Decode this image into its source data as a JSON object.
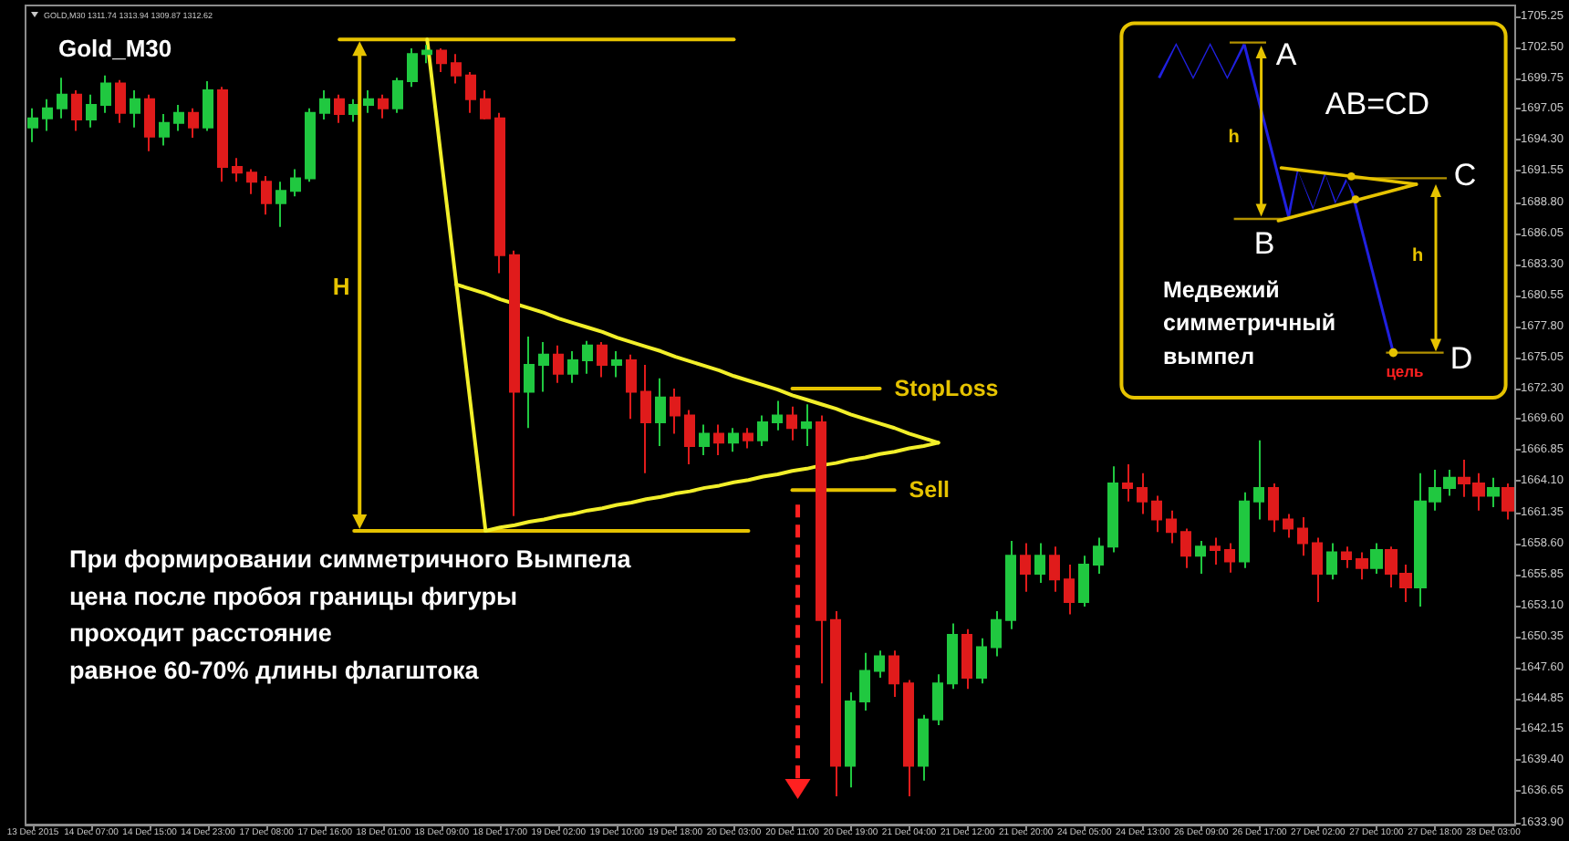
{
  "chart_data": {
    "type": "candlestick",
    "title": "Gold_M30",
    "marker": "none",
    "annotations": [
      "GOLD,M30 1311.74 1313.94 1309.87 1312.62",
      "H",
      "При формировании симметричного Вымпела\nцена после пробоя границы фигуры\nпроходит расстояние\nравное 60-70% длины флагштока",
      "A",
      "AB=CD",
      "h",
      "B",
      "C",
      "h",
      "Медвежий\nсимметричный\nвымпел",
      "D",
      "цель"
    ],
    "categories": [
      "13 Dec 2015",
      null,
      null,
      null,
      "14 Dec 07:00",
      null,
      null,
      null,
      "14 Dec 15:00",
      null,
      null,
      null,
      "14 Dec 23:00",
      null,
      null,
      null,
      "17 Dec 08:00",
      null,
      null,
      null,
      "17 Dec 16:00",
      null,
      null,
      null,
      "18 Dec 01:00",
      null,
      null,
      null,
      "18 Dec 09:00",
      null,
      null,
      null,
      "18 Dec 17:00",
      null,
      null,
      null,
      "19 Dec 02:00",
      null,
      null,
      null,
      "19 Dec 10:00",
      null,
      null,
      null,
      "19 Dec 18:00",
      null,
      null,
      null,
      "20 Dec 03:00",
      null,
      null,
      null,
      "20 Dec 11:00",
      null,
      null,
      null,
      "20 Dec 19:00",
      null,
      null,
      null,
      "21 Dec 04:00",
      null,
      null,
      null,
      "21 Dec 12:00",
      null,
      null,
      null,
      "21 Dec 20:00",
      null,
      null,
      null,
      "24 Dec 05:00",
      null,
      null,
      null,
      "24 Dec 13:00",
      null,
      null,
      null,
      "26 Dec 09:00",
      null,
      null,
      null,
      "26 Dec 17:00",
      null,
      null,
      null,
      "27 Dec 02:00",
      null,
      null,
      null,
      "27 Dec 10:00",
      null,
      null,
      null,
      "27 Dec 18:00",
      null,
      null,
      null,
      "28 Dec 03:00",
      null
    ],
    "ylim": [
      1633.7,
      1706.2
    ],
    "yticks": [
      {
        "value": 1633.9,
        "label": "1633.90"
      },
      1636.65,
      {
        "value": 1639.4,
        "label": "1639.40"
      },
      1642.15,
      1644.85,
      {
        "value": 1647.6,
        "label": "1647.60"
      },
      1650.35,
      {
        "value": 1653.1,
        "label": "1653.10"
      },
      1655.85,
      {
        "value": 1658.6,
        "label": "1658.60"
      },
      1661.35,
      {
        "value": 1664.1,
        "label": "1664.10"
      },
      1666.85,
      {
        "value": 1669.6,
        "label": "1669.60"
      },
      {
        "value": 1672.3,
        "label": "1672.30"
      },
      1675.05,
      {
        "value": 1677.8,
        "label": "1677.80"
      },
      1680.55,
      {
        "value": 1683.3,
        "label": "1683.30"
      },
      1686.05,
      {
        "value": 1688.8,
        "label": "1688.80"
      },
      1691.55,
      {
        "value": 1694.3,
        "label": "1694.30"
      },
      1697.05,
      1699.75,
      {
        "value": 1702.5,
        "label": "1702.50"
      },
      1705.25
    ],
    "ohlc": [
      [
        1695.4,
        1697.1,
        1694.1,
        1696.2
      ],
      [
        1696.2,
        1697.9,
        1695.1,
        1697.1
      ],
      [
        1697.1,
        1699.8,
        1696.2,
        1698.3
      ],
      [
        1698.3,
        1698.7,
        1695.1,
        1696.1
      ],
      [
        1696.1,
        1698.3,
        1695.4,
        1697.4
      ],
      [
        1697.4,
        1700.0,
        1696.7,
        1699.3
      ],
      [
        1699.3,
        1699.6,
        1695.8,
        1696.7
      ],
      [
        1696.7,
        1698.7,
        1695.4,
        1697.9
      ],
      [
        1697.9,
        1698.3,
        1693.3,
        1694.6
      ],
      [
        1694.6,
        1696.6,
        1693.8,
        1695.8
      ],
      [
        1695.8,
        1697.4,
        1695.1,
        1696.7
      ],
      [
        1696.7,
        1697.1,
        1694.5,
        1695.4
      ],
      [
        1695.4,
        1699.5,
        1695.1,
        1698.7
      ],
      [
        1698.7,
        1699.0,
        1690.6,
        1691.9
      ],
      [
        1691.9,
        1692.7,
        1690.6,
        1691.4
      ],
      [
        1691.4,
        1691.7,
        1689.5,
        1690.6
      ],
      [
        1690.6,
        1691.1,
        1687.7,
        1688.7
      ],
      [
        1688.7,
        1690.6,
        1686.6,
        1689.8
      ],
      [
        1689.8,
        1691.7,
        1689.3,
        1690.9
      ],
      [
        1690.9,
        1697.1,
        1690.6,
        1696.7
      ],
      [
        1696.7,
        1698.7,
        1696.1,
        1697.9
      ],
      [
        1697.9,
        1698.3,
        1695.8,
        1696.6
      ],
      [
        1696.6,
        1697.9,
        1695.9,
        1697.4
      ],
      [
        1697.4,
        1698.7,
        1696.7,
        1697.9
      ],
      [
        1697.9,
        1698.3,
        1696.2,
        1697.1
      ],
      [
        1697.1,
        1699.8,
        1696.7,
        1699.5
      ],
      [
        1699.5,
        1702.4,
        1699.0,
        1701.9
      ],
      [
        1701.9,
        1702.7,
        1701.1,
        1702.2
      ],
      [
        1702.2,
        1702.4,
        1700.3,
        1701.1
      ],
      [
        1701.1,
        1701.9,
        1699.3,
        1700.0
      ],
      [
        1700.0,
        1700.3,
        1696.7,
        1697.9
      ],
      [
        1697.9,
        1698.7,
        1696.1,
        1696.2
      ],
      [
        1696.2,
        1696.7,
        1682.5,
        1684.1
      ],
      [
        1684.1,
        1684.5,
        1661.0,
        1672.0
      ],
      [
        1672.0,
        1676.9,
        1668.8,
        1674.4
      ],
      [
        1674.4,
        1676.4,
        1672.0,
        1675.3
      ],
      [
        1675.3,
        1676.1,
        1672.8,
        1673.6
      ],
      [
        1673.6,
        1675.6,
        1672.8,
        1674.8
      ],
      [
        1674.8,
        1676.5,
        1673.6,
        1676.1
      ],
      [
        1676.1,
        1676.4,
        1673.3,
        1674.4
      ],
      [
        1674.4,
        1675.6,
        1673.3,
        1674.8
      ],
      [
        1674.8,
        1675.3,
        1669.6,
        1672.0
      ],
      [
        1672.0,
        1674.4,
        1664.8,
        1669.3
      ],
      [
        1669.3,
        1673.2,
        1667.2,
        1671.5
      ],
      [
        1671.5,
        1672.3,
        1668.3,
        1669.9
      ],
      [
        1669.9,
        1670.4,
        1665.6,
        1667.2
      ],
      [
        1667.2,
        1669.1,
        1666.4,
        1668.3
      ],
      [
        1668.3,
        1669.1,
        1666.4,
        1667.5
      ],
      [
        1667.5,
        1668.8,
        1666.7,
        1668.3
      ],
      [
        1668.3,
        1668.8,
        1667.0,
        1667.7
      ],
      [
        1667.7,
        1669.9,
        1667.2,
        1669.3
      ],
      [
        1669.3,
        1671.2,
        1668.6,
        1669.9
      ],
      [
        1669.9,
        1670.7,
        1667.7,
        1668.8
      ],
      [
        1668.8,
        1670.9,
        1667.2,
        1669.3
      ],
      [
        1669.3,
        1669.9,
        1646.2,
        1651.8
      ],
      [
        1651.8,
        1652.6,
        1636.2,
        1638.9
      ],
      [
        1638.9,
        1645.4,
        1637.0,
        1644.6
      ],
      [
        1644.6,
        1648.9,
        1643.8,
        1647.3
      ],
      [
        1647.3,
        1649.1,
        1646.7,
        1648.6
      ],
      [
        1648.6,
        1649.1,
        1645.0,
        1646.2
      ],
      [
        1646.2,
        1646.5,
        1636.2,
        1638.9
      ],
      [
        1638.9,
        1643.4,
        1637.6,
        1643.0
      ],
      [
        1643.0,
        1647.0,
        1642.5,
        1646.2
      ],
      [
        1646.2,
        1651.5,
        1645.7,
        1650.5
      ],
      [
        1650.5,
        1651.0,
        1645.7,
        1646.7
      ],
      [
        1646.7,
        1650.2,
        1646.2,
        1649.4
      ],
      [
        1649.4,
        1652.6,
        1648.6,
        1651.8
      ],
      [
        1651.8,
        1658.8,
        1651.0,
        1657.5
      ],
      [
        1657.5,
        1658.6,
        1654.3,
        1655.9
      ],
      [
        1655.9,
        1658.6,
        1655.1,
        1657.5
      ],
      [
        1657.5,
        1658.3,
        1654.3,
        1655.4
      ],
      [
        1655.4,
        1656.7,
        1652.3,
        1653.4
      ],
      [
        1653.4,
        1657.5,
        1653.0,
        1656.7
      ],
      [
        1656.7,
        1659.1,
        1655.9,
        1658.3
      ],
      [
        1658.3,
        1665.4,
        1657.8,
        1663.9
      ],
      [
        1663.9,
        1665.6,
        1662.3,
        1663.5
      ],
      [
        1663.5,
        1664.8,
        1661.2,
        1662.3
      ],
      [
        1662.3,
        1662.8,
        1659.6,
        1660.7
      ],
      [
        1660.7,
        1661.5,
        1658.6,
        1659.6
      ],
      [
        1659.6,
        1659.9,
        1656.4,
        1657.5
      ],
      [
        1657.5,
        1658.8,
        1655.9,
        1658.3
      ],
      [
        1658.3,
        1659.1,
        1656.7,
        1658.0
      ],
      [
        1658.0,
        1658.6,
        1656.0,
        1657.0
      ],
      [
        1657.0,
        1663.1,
        1656.4,
        1662.3
      ],
      [
        1662.3,
        1667.7,
        1660.7,
        1663.5
      ],
      [
        1663.5,
        1663.9,
        1659.6,
        1660.7
      ],
      [
        1660.7,
        1661.2,
        1659.1,
        1659.9
      ],
      [
        1659.9,
        1660.9,
        1657.5,
        1658.6
      ],
      [
        1658.6,
        1659.1,
        1653.4,
        1655.9
      ],
      [
        1655.9,
        1658.6,
        1655.4,
        1657.8
      ],
      [
        1657.8,
        1658.3,
        1656.4,
        1657.2
      ],
      [
        1657.2,
        1657.8,
        1655.4,
        1656.4
      ],
      [
        1656.4,
        1658.6,
        1655.9,
        1658.0
      ],
      [
        1658.0,
        1658.3,
        1654.7,
        1655.9
      ],
      [
        1655.9,
        1656.7,
        1653.4,
        1654.7
      ],
      [
        1654.7,
        1664.8,
        1653.0,
        1662.3
      ],
      [
        1662.3,
        1665.1,
        1661.5,
        1663.5
      ],
      [
        1663.5,
        1665.1,
        1662.8,
        1664.4
      ],
      [
        1664.4,
        1666.0,
        1662.7,
        1663.9
      ],
      [
        1663.9,
        1664.8,
        1661.5,
        1662.8
      ],
      [
        1662.8,
        1664.4,
        1661.8,
        1663.5
      ],
      [
        1663.5,
        1663.9,
        1660.7,
        1661.5
      ]
    ],
    "colors": [
      "#20c840",
      "#20c840",
      "#20c840",
      "#e01b1b",
      "#20c840",
      "#20c840",
      "#e01b1b",
      "#20c840",
      "#e01b1b",
      "#20c840",
      "#20c840",
      "#e01b1b",
      "#20c840",
      "#e01b1b",
      "#e01b1b",
      "#e01b1b",
      "#e01b1b",
      "#20c840",
      "#20c840",
      "#20c840",
      "#20c840",
      "#e01b1b",
      "#20c840",
      "#20c840",
      "#e01b1b",
      "#20c840",
      "#20c840",
      "#20c840",
      "#e01b1b",
      "#e01b1b",
      "#e01b1b",
      "#e01b1b",
      "#e01b1b",
      "#e01b1b",
      "#20c840",
      "#20c840",
      "#e01b1b",
      "#20c840",
      "#20c840",
      "#e01b1b",
      "#20c840",
      "#e01b1b",
      "#e01b1b",
      "#20c840",
      "#e01b1b",
      "#e01b1b",
      "#20c840",
      "#e01b1b",
      "#20c840",
      "#e01b1b",
      "#20c840",
      "#20c840",
      "#e01b1b",
      "#20c840",
      "#e01b1b",
      "#e01b1b",
      "#20c840",
      "#20c840",
      "#20c840",
      "#e01b1b",
      "#e01b1b",
      "#20c840",
      "#20c840",
      "#20c840",
      "#e01b1b",
      "#20c840",
      "#20c840",
      "#20c840",
      "#e01b1b",
      "#20c840",
      "#e01b1b",
      "#e01b1b",
      "#20c840",
      "#20c840",
      "#20c840",
      "#e01b1b",
      "#e01b1b",
      "#e01b1b",
      "#e01b1b",
      "#e01b1b",
      "#20c840",
      "#e01b1b",
      "#e01b1b",
      "#20c840",
      "#20c840",
      "#e01b1b",
      "#e01b1b",
      "#e01b1b",
      "#e01b1b",
      "#20c840",
      "#e01b1b",
      "#e01b1b",
      "#20c840",
      "#e01b1b",
      "#e01b1b",
      "#20c840",
      "#20c840",
      "#20c840",
      "#e01b1b",
      "#e01b1b",
      "#20c840",
      "#e01b1b"
    ],
    "series": [
      {
        "type": "line",
        "color": "#e6c300",
        "values": [
          null,
          null,
          null,
          null,
          null,
          null,
          null,
          null,
          null,
          null,
          null,
          null,
          null,
          null,
          null,
          null,
          null,
          null,
          null,
          null,
          null,
          1703.2,
          1703.2,
          1703.2,
          1703.2,
          1703.2,
          1703.2,
          1703.2,
          1703.2,
          1703.2,
          1703.2,
          1703.2,
          1703.2,
          1703.2,
          1703.2,
          1703.2,
          1703.2,
          1703.2,
          1703.2,
          1703.2,
          1703.2,
          1703.2,
          1703.2,
          1703.2,
          1703.2,
          1703.2,
          1703.2,
          1703.2,
          1703.2,
          null,
          null,
          null,
          null,
          null,
          null,
          null,
          null,
          null,
          null,
          null,
          null,
          null,
          null,
          null,
          null,
          null,
          null,
          null,
          null,
          null,
          null,
          null,
          null,
          null,
          null,
          null,
          null,
          null,
          null,
          null,
          null,
          null,
          null,
          null,
          null,
          null,
          null,
          null,
          null,
          null,
          null,
          null,
          null,
          null,
          null,
          null,
          null,
          null,
          null,
          null,
          null,
          null
        ]
      },
      {
        "type": "line",
        "color": "#e6c300",
        "values": [
          null,
          null,
          null,
          null,
          null,
          null,
          null,
          null,
          null,
          null,
          null,
          null,
          null,
          null,
          null,
          null,
          null,
          null,
          null,
          null,
          null,
          null,
          1659.7,
          1659.7,
          1659.7,
          1659.7,
          1659.7,
          1659.7,
          1659.7,
          1659.7,
          1659.7,
          1659.7,
          1659.7,
          1659.7,
          1659.7,
          1659.7,
          1659.7,
          1659.7,
          1659.7,
          1659.7,
          1659.7,
          1659.7,
          1659.7,
          1659.7,
          1659.7,
          1659.7,
          1659.7,
          1659.7,
          1659.7,
          1659.7,
          null,
          null,
          null,
          null,
          null,
          null,
          null,
          null,
          null,
          null,
          null,
          null,
          null,
          null,
          null,
          null,
          null,
          null,
          null,
          null,
          null,
          null,
          null,
          null,
          null,
          null,
          null,
          null,
          null,
          null,
          null,
          null,
          null,
          null,
          null,
          null,
          null,
          null,
          null,
          null,
          null,
          null,
          null,
          null,
          null,
          null,
          null,
          null,
          null,
          null,
          null,
          null
        ]
      },
      {
        "type": "line",
        "color": "#f2ef2a",
        "values": [
          null,
          null,
          null,
          null,
          null,
          null,
          null,
          null,
          null,
          null,
          null,
          null,
          null,
          null,
          null,
          null,
          null,
          null,
          null,
          null,
          null,
          null,
          null,
          null,
          null,
          null,
          null,
          1703.2,
          1692.3,
          1681.5,
          1670.6,
          1659.7,
          null,
          null,
          null,
          null,
          null,
          null,
          null,
          null,
          null,
          null,
          null,
          null,
          null,
          null,
          null,
          null,
          null,
          null,
          null,
          null,
          null,
          null,
          null,
          null,
          null,
          null,
          null,
          null,
          null,
          null,
          null,
          null,
          null,
          null,
          null,
          null,
          null,
          null,
          null,
          null,
          null,
          null,
          null,
          null,
          null,
          null,
          null,
          null,
          null,
          null,
          null,
          null,
          null,
          null,
          null,
          null,
          null,
          null,
          null,
          null,
          null,
          null,
          null,
          null,
          null,
          null,
          null,
          null,
          null,
          null
        ]
      },
      {
        "type": "line",
        "color": "#f2ef2a",
        "values": [
          null,
          null,
          null,
          null,
          null,
          null,
          null,
          null,
          null,
          null,
          null,
          null,
          null,
          null,
          null,
          null,
          null,
          null,
          null,
          null,
          null,
          null,
          null,
          null,
          null,
          null,
          null,
          null,
          null,
          null,
          null,
          1659.7,
          1660.0,
          1660.2,
          1660.5,
          1660.7,
          1661.0,
          1661.2,
          1661.5,
          1661.7,
          1662.0,
          1662.2,
          1662.5,
          1662.7,
          1663.0,
          1663.2,
          1663.5,
          1663.7,
          1664.0,
          1664.2,
          1664.5,
          1664.7,
          1665.0,
          1665.2,
          1665.5,
          1665.7,
          1666.0,
          1666.2,
          1666.5,
          1666.7,
          1667.0,
          1667.2,
          1667.5,
          null,
          null,
          null,
          null,
          null,
          null,
          null,
          null,
          null,
          null,
          null,
          null,
          null,
          null,
          null,
          null,
          null,
          null,
          null,
          null,
          null,
          null,
          null,
          null,
          null,
          null,
          null,
          null,
          null,
          null,
          null,
          null,
          null,
          null,
          null,
          null,
          null,
          null,
          null
        ]
      },
      {
        "type": "line",
        "color": "#f2ef2a",
        "values": [
          null,
          null,
          null,
          null,
          null,
          null,
          null,
          null,
          null,
          null,
          null,
          null,
          null,
          null,
          null,
          null,
          null,
          null,
          null,
          null,
          null,
          null,
          null,
          null,
          null,
          null,
          null,
          null,
          null,
          1681.5,
          1681.1,
          1680.7,
          1680.2,
          1679.8,
          1679.4,
          1679.0,
          1678.5,
          1678.1,
          1677.7,
          1677.3,
          1676.8,
          1676.4,
          1676.0,
          1675.6,
          1675.1,
          1674.7,
          1674.3,
          1673.9,
          1673.4,
          1673.0,
          1672.6,
          1672.2,
          1671.7,
          1671.3,
          1670.9,
          1670.5,
          1670.0,
          1669.6,
          1669.2,
          1668.8,
          1668.3,
          1667.9,
          1667.5,
          null,
          null,
          null,
          null,
          null,
          null,
          null,
          null,
          null,
          null,
          null,
          null,
          null,
          null,
          null,
          null,
          null,
          null,
          null,
          null,
          null,
          null,
          null,
          null,
          null,
          null,
          null,
          null,
          null,
          null,
          null,
          null,
          null,
          null,
          null,
          null,
          null,
          null,
          null
        ]
      },
      {
        "type": "line",
        "name": "StopLoss",
        "color": "#e6c300",
        "values": [
          null,
          null,
          null,
          null,
          null,
          null,
          null,
          null,
          null,
          null,
          null,
          null,
          null,
          null,
          null,
          null,
          null,
          null,
          null,
          null,
          null,
          null,
          null,
          null,
          null,
          null,
          null,
          null,
          null,
          null,
          null,
          null,
          null,
          null,
          null,
          null,
          null,
          null,
          null,
          null,
          null,
          null,
          null,
          null,
          null,
          null,
          null,
          null,
          null,
          null,
          null,
          null,
          1672.3,
          1672.3,
          1672.3,
          1672.3,
          1672.3,
          1672.3,
          1672.3,
          null,
          null,
          null,
          null,
          null,
          null,
          null,
          null,
          null,
          null,
          null,
          null,
          null,
          null,
          null,
          null,
          null,
          null,
          null,
          null,
          null,
          null,
          null,
          null,
          null,
          null,
          null,
          null,
          null,
          null,
          null,
          null,
          null,
          null,
          null,
          null,
          null,
          null,
          null,
          null,
          null,
          null,
          null
        ]
      },
      {
        "type": "line",
        "name": "Sell",
        "color": "#e6c300",
        "values": [
          null,
          null,
          null,
          null,
          null,
          null,
          null,
          null,
          null,
          null,
          null,
          null,
          null,
          null,
          null,
          null,
          null,
          null,
          null,
          null,
          null,
          null,
          null,
          null,
          null,
          null,
          null,
          null,
          null,
          null,
          null,
          null,
          null,
          null,
          null,
          null,
          null,
          null,
          null,
          null,
          null,
          null,
          null,
          null,
          null,
          null,
          null,
          null,
          null,
          null,
          null,
          null,
          1663.3,
          1663.3,
          1663.3,
          1663.3,
          1663.3,
          1663.3,
          1663.3,
          1663.3,
          null,
          null,
          null,
          null,
          null,
          null,
          null,
          null,
          null,
          null,
          null,
          null,
          null,
          null,
          null,
          null,
          null,
          null,
          null,
          null,
          null,
          null,
          null,
          null,
          null,
          null,
          null,
          null,
          null,
          null,
          null,
          null,
          null,
          null,
          null,
          null,
          null,
          null,
          null,
          null,
          null,
          null
        ]
      }
    ]
  }
}
